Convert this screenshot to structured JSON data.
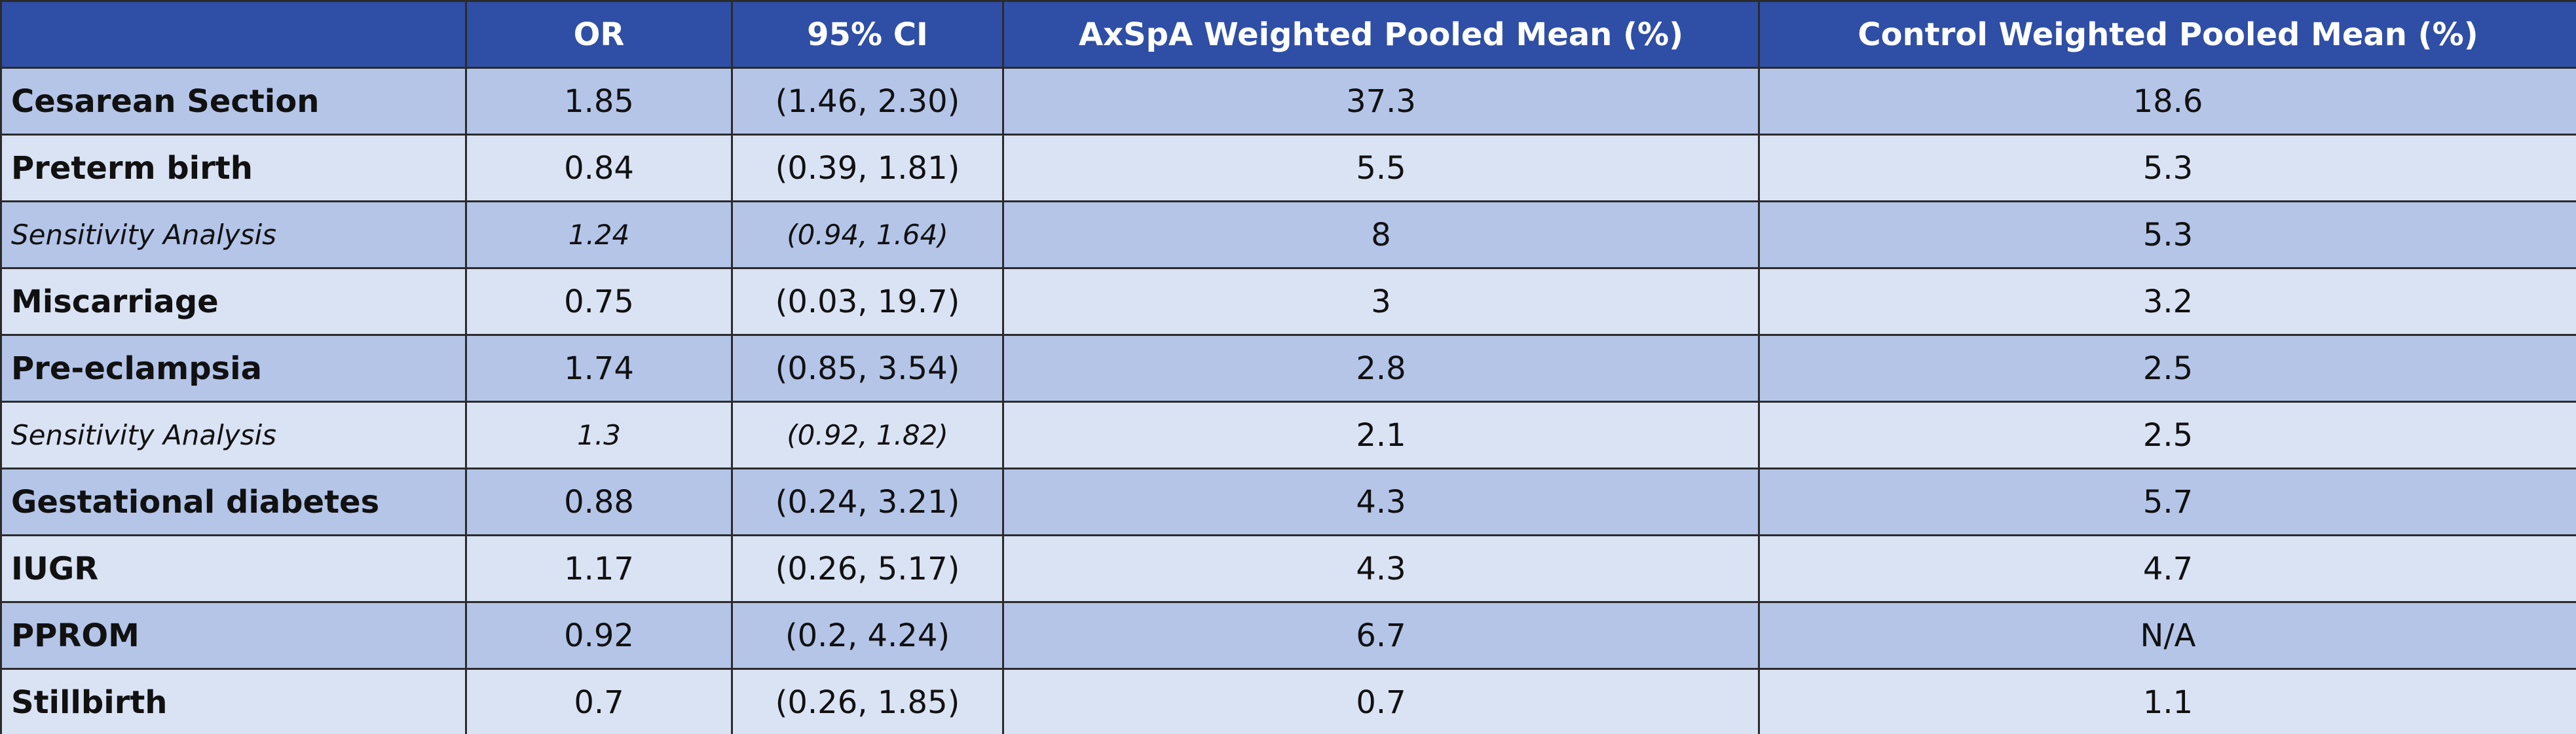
{
  "table": {
    "header": [
      "OR",
      "95% CI",
      "AxSpA Weighted Pooled Mean (%)",
      "Control Weighted Pooled Mean (%)"
    ],
    "rows": [
      [
        "Cesarean Section",
        "1.85",
        "(1.46, 2.30)",
        "37.3",
        "18.6"
      ],
      [
        "Preterm birth",
        "0.84",
        "(0.39, 1.81)",
        "5.5",
        "5.3"
      ],
      [
        "Sensitivity Analysis",
        "1.24",
        "(0.94, 1.64)",
        "8",
        "5.3"
      ],
      [
        "Miscarriage",
        "0.75",
        "(0.03, 19.7)",
        "3",
        "3.2"
      ],
      [
        "Pre-eclampsia",
        "1.74",
        "(0.85, 3.54)",
        "2.8",
        "2.5"
      ],
      [
        "Sensitivity Analysis",
        "1.3",
        "(0.92, 1.82)",
        "2.1",
        "2.5"
      ],
      [
        "Gestational diabetes",
        "0.88",
        "(0.24, 3.21)",
        "4.3",
        "5.7"
      ],
      [
        "IUGR",
        "1.17",
        "(0.26, 5.17)",
        "4.3",
        "4.7"
      ],
      [
        "PPROM",
        "0.92",
        "(0.2, 4.24)",
        "6.7",
        "N/A"
      ],
      [
        "Stillbirth",
        "0.7",
        "(0.26, 1.85)",
        "0.7",
        "1.1"
      ]
    ]
  }
}
